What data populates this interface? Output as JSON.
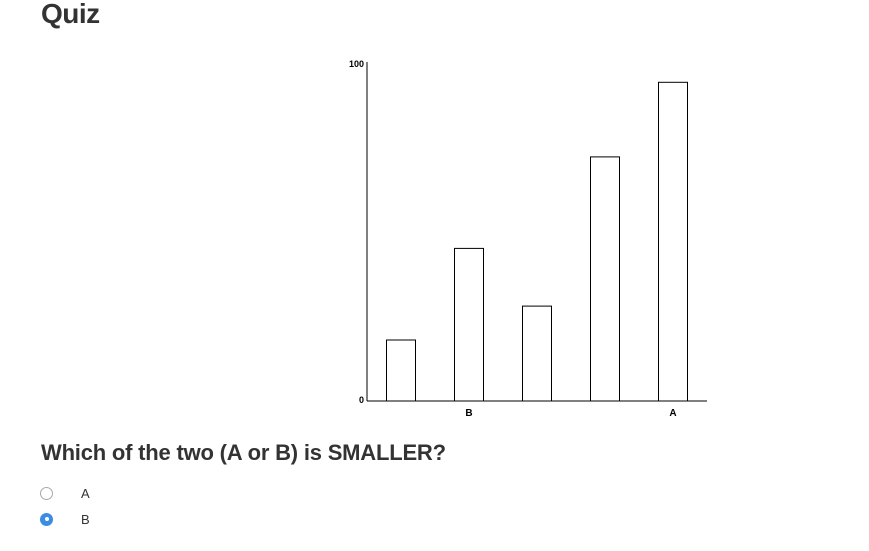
{
  "page": {
    "title": "Quiz"
  },
  "chart_data": {
    "type": "bar",
    "categories": [
      "",
      "B",
      "",
      "",
      "A"
    ],
    "values": [
      18,
      45,
      28,
      72,
      94
    ],
    "ylim": [
      0,
      100
    ],
    "ytick_labels": [
      "0",
      "100"
    ],
    "title": "",
    "xlabel": "",
    "ylabel": "",
    "bar_fill": "#ffffff",
    "bar_stroke": "#000000",
    "grid": false
  },
  "question": {
    "text": "Which of the two (A or B) is SMALLER?"
  },
  "options": [
    {
      "label": "A",
      "checked": false
    },
    {
      "label": "B",
      "checked": true
    }
  ]
}
